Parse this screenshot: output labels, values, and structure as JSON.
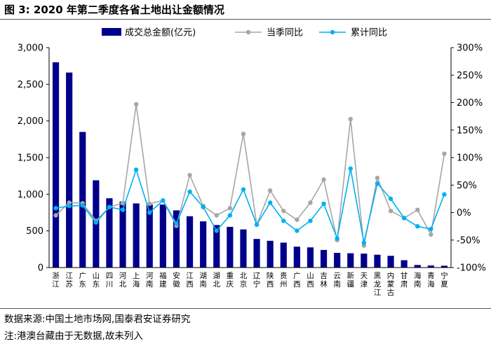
{
  "title": "图 3:  2020 年第二季度各省土地出让金额情况",
  "source_note": "数据来源:中国土地市场网,国泰君安证券研究",
  "footnote": "注:港澳台藏由于无数据,故未列入",
  "colors": {
    "bar": "#00008B",
    "quarter_yoy": "#A6A6A6",
    "cumulative_yoy": "#00B0F0",
    "axis": "#000000"
  },
  "chart_data": {
    "type": "bar",
    "categories": [
      "浙江",
      "江苏",
      "广东",
      "山东",
      "四川",
      "河北",
      "上海",
      "河南",
      "福建",
      "安徽",
      "江西",
      "湖南",
      "湖北",
      "重庆",
      "北京",
      "辽宁",
      "陕西",
      "贵州",
      "广西",
      "山西",
      "吉林",
      "云南",
      "新疆",
      "天津",
      "黑龙江",
      "内蒙古",
      "甘肃",
      "海南",
      "青海",
      "宁夏"
    ],
    "series": [
      {
        "name": "成交总金额(亿元)",
        "type": "bar",
        "axis": "left",
        "values": [
          2800,
          2660,
          1850,
          1190,
          945,
          900,
          875,
          860,
          860,
          780,
          700,
          630,
          580,
          555,
          520,
          390,
          365,
          340,
          285,
          275,
          240,
          200,
          195,
          190,
          175,
          160,
          100,
          35,
          28,
          25
        ]
      },
      {
        "name": "当季同比",
        "type": "line",
        "axis": "right",
        "values": [
          -5,
          18,
          17,
          -15,
          10,
          17,
          197,
          16,
          22,
          -24,
          68,
          12,
          -5,
          8,
          143,
          -22,
          40,
          3,
          -13,
          18,
          60,
          -50,
          170,
          -60,
          63,
          3,
          -10,
          5,
          -40,
          107
        ]
      },
      {
        "name": "累计同比",
        "type": "line",
        "axis": "right",
        "values": [
          8,
          12,
          13,
          -18,
          10,
          5,
          78,
          0,
          22,
          -20,
          38,
          10,
          -33,
          -5,
          42,
          -22,
          18,
          -15,
          -33,
          -15,
          16,
          -47,
          80,
          -55,
          53,
          25,
          -10,
          -25,
          -30,
          33
        ]
      }
    ],
    "left_axis": {
      "min": 0,
      "max": 3000,
      "ticks": [
        "0",
        "500",
        "1,000",
        "1,500",
        "2,000",
        "2,500",
        "3,000"
      ]
    },
    "right_axis": {
      "min": -100,
      "max": 300,
      "ticks": [
        "-100%",
        "-50%",
        "0%",
        "50%",
        "100%",
        "150%",
        "200%",
        "250%",
        "300%"
      ]
    },
    "legend_position": "top",
    "grid": false
  }
}
